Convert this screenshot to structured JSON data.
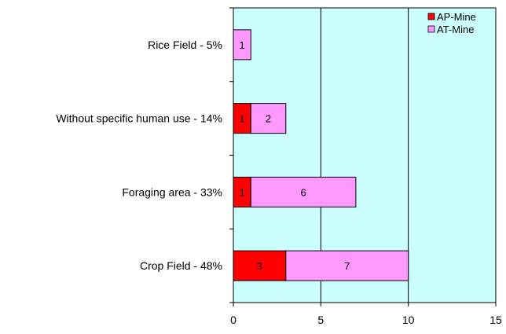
{
  "chart_data": {
    "type": "bar",
    "orientation": "horizontal",
    "stacked": true,
    "categories": [
      "Rice Field - 5%",
      "Without specific human use - 14%",
      "Foraging area - 33%",
      "Crop Field - 48%"
    ],
    "series": [
      {
        "name": "AP-Mine",
        "color": "#ff0000",
        "values": [
          0,
          1,
          1,
          3
        ]
      },
      {
        "name": "AT-Mine",
        "color": "#ff99ff",
        "values": [
          1,
          2,
          6,
          7
        ]
      }
    ],
    "xlim": [
      0,
      15
    ],
    "x_ticks": [
      "0",
      "5",
      "10",
      "15"
    ],
    "grid": true,
    "plot_background": "#ccffff",
    "legend": "top-right"
  }
}
